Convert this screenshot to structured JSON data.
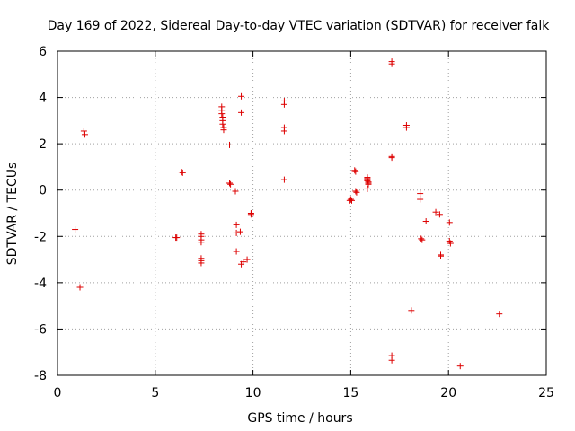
{
  "chart_data": {
    "type": "scatter",
    "title": "Day 169 of 2022, Sidereal Day-to-day VTEC variation (SDTVAR) for receiver falk",
    "xlabel": "GPS time / hours",
    "ylabel": "SDTVAR / TECUs",
    "xlim": [
      0,
      25
    ],
    "ylim": [
      -8,
      6
    ],
    "xticks": [
      0,
      5,
      10,
      15,
      20,
      25
    ],
    "yticks": [
      -8,
      -6,
      -4,
      -2,
      0,
      2,
      4,
      6
    ],
    "grid": true,
    "marker": "+",
    "color": "#dd0000",
    "series": [
      {
        "name": "SDTVAR",
        "points": [
          [
            0.9,
            -1.7
          ],
          [
            1.15,
            -4.2
          ],
          [
            1.35,
            2.55
          ],
          [
            1.4,
            2.4
          ],
          [
            6.05,
            -2.05
          ],
          [
            6.1,
            -2.05
          ],
          [
            6.35,
            0.78
          ],
          [
            6.4,
            0.75
          ],
          [
            7.35,
            -1.9
          ],
          [
            7.35,
            -2.0
          ],
          [
            7.35,
            -2.15
          ],
          [
            7.35,
            -2.25
          ],
          [
            7.35,
            -2.95
          ],
          [
            7.35,
            -3.05
          ],
          [
            7.35,
            -3.15
          ],
          [
            8.4,
            3.6
          ],
          [
            8.4,
            3.45
          ],
          [
            8.4,
            3.3
          ],
          [
            8.45,
            3.15
          ],
          [
            8.45,
            3.0
          ],
          [
            8.45,
            2.85
          ],
          [
            8.5,
            2.7
          ],
          [
            8.5,
            2.6
          ],
          [
            8.8,
            1.95
          ],
          [
            8.8,
            0.3
          ],
          [
            8.85,
            0.25
          ],
          [
            9.1,
            -0.05
          ],
          [
            9.15,
            -1.5
          ],
          [
            9.15,
            -1.85
          ],
          [
            9.15,
            -2.65
          ],
          [
            9.35,
            -1.8
          ],
          [
            9.4,
            4.05
          ],
          [
            9.4,
            3.35
          ],
          [
            9.4,
            -3.2
          ],
          [
            9.5,
            -3.1
          ],
          [
            9.7,
            -3.0
          ],
          [
            9.9,
            -1.05
          ],
          [
            9.9,
            -1.0
          ],
          [
            11.6,
            3.85
          ],
          [
            11.6,
            3.7
          ],
          [
            11.6,
            2.7
          ],
          [
            11.6,
            2.55
          ],
          [
            11.6,
            0.45
          ],
          [
            14.95,
            -0.45
          ],
          [
            15.0,
            -0.4
          ],
          [
            15.05,
            -0.45
          ],
          [
            15.2,
            0.85
          ],
          [
            15.25,
            0.8
          ],
          [
            15.25,
            -0.05
          ],
          [
            15.3,
            -0.1
          ],
          [
            15.85,
            0.55
          ],
          [
            15.85,
            0.5
          ],
          [
            15.85,
            0.45
          ],
          [
            15.85,
            0.4
          ],
          [
            15.9,
            0.35
          ],
          [
            15.9,
            0.3
          ],
          [
            15.9,
            0.25
          ],
          [
            15.85,
            0.05
          ],
          [
            17.1,
            5.55
          ],
          [
            17.1,
            5.45
          ],
          [
            17.1,
            1.45
          ],
          [
            17.1,
            1.4
          ],
          [
            17.1,
            -7.15
          ],
          [
            17.1,
            -7.35
          ],
          [
            17.85,
            2.8
          ],
          [
            17.85,
            2.7
          ],
          [
            18.1,
            -5.2
          ],
          [
            18.55,
            -0.15
          ],
          [
            18.55,
            -0.4
          ],
          [
            18.6,
            -2.1
          ],
          [
            18.65,
            -2.15
          ],
          [
            18.85,
            -1.35
          ],
          [
            19.35,
            -0.95
          ],
          [
            19.55,
            -1.05
          ],
          [
            19.6,
            -2.8
          ],
          [
            19.6,
            -2.85
          ],
          [
            20.05,
            -1.4
          ],
          [
            20.05,
            -2.2
          ],
          [
            20.1,
            -2.3
          ],
          [
            20.6,
            -7.6
          ],
          [
            22.6,
            -5.35
          ]
        ]
      }
    ]
  }
}
